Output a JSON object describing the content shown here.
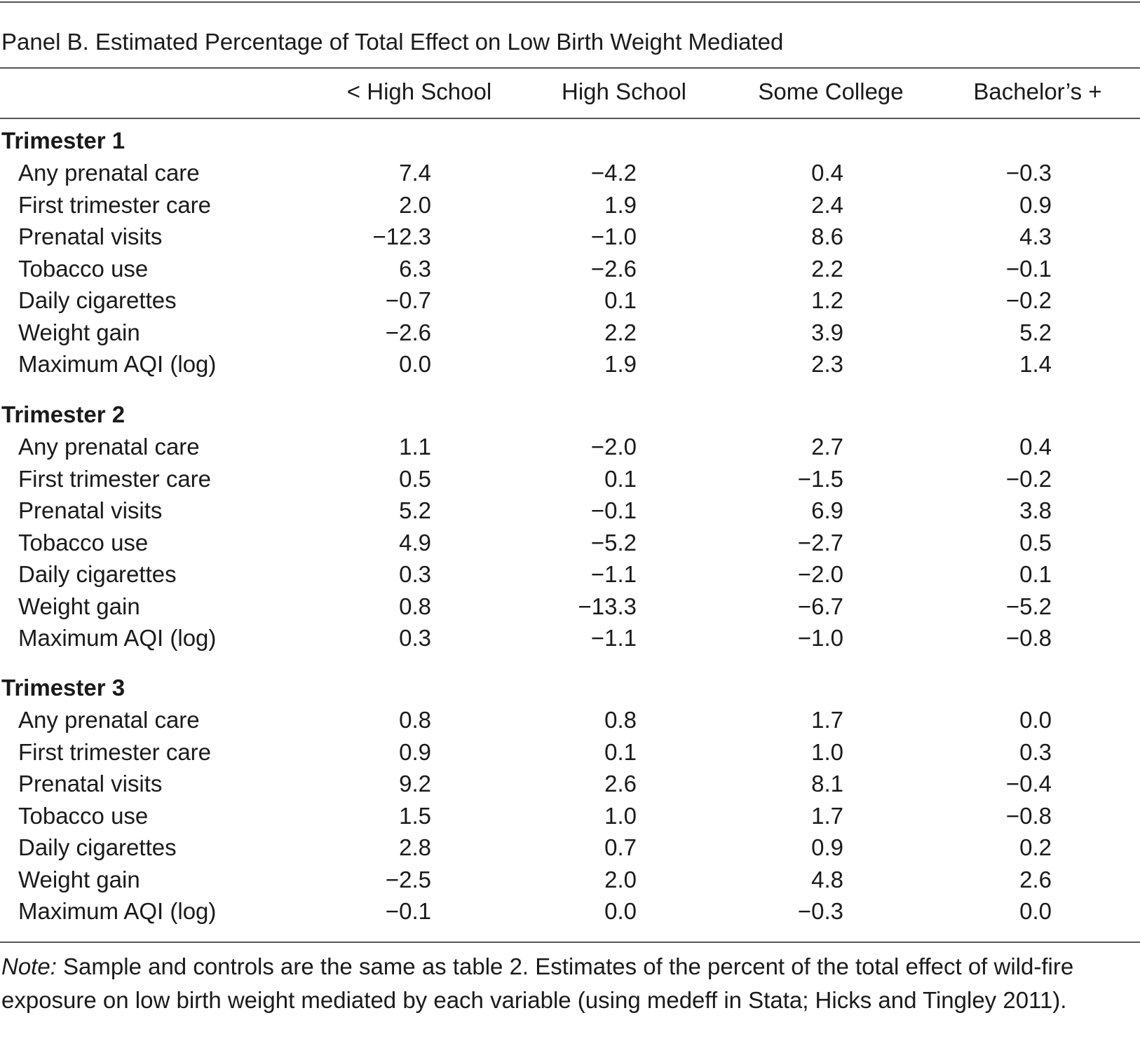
{
  "title": "Panel B. Estimated Percentage of Total Effect on Low Birth Weight Mediated",
  "columns": [
    "< High School",
    "High School",
    "Some College",
    "Bachelor’s +"
  ],
  "sections": [
    {
      "title": "Trimester 1",
      "rows": [
        {
          "label": "Any prenatal care",
          "values": [
            "7.4",
            "−4.2",
            "0.4",
            "−0.3"
          ]
        },
        {
          "label": "First trimester care",
          "values": [
            "2.0",
            "1.9",
            "2.4",
            "0.9"
          ]
        },
        {
          "label": "Prenatal visits",
          "values": [
            "−12.3",
            "−1.0",
            "8.6",
            "4.3"
          ]
        },
        {
          "label": "Tobacco use",
          "values": [
            "6.3",
            "−2.6",
            "2.2",
            "−0.1"
          ]
        },
        {
          "label": "Daily cigarettes",
          "values": [
            "−0.7",
            "0.1",
            "1.2",
            "−0.2"
          ]
        },
        {
          "label": "Weight gain",
          "values": [
            "−2.6",
            "2.2",
            "3.9",
            "5.2"
          ]
        },
        {
          "label": "Maximum AQI (log)",
          "values": [
            "0.0",
            "1.9",
            "2.3",
            "1.4"
          ]
        }
      ]
    },
    {
      "title": "Trimester 2",
      "rows": [
        {
          "label": "Any prenatal care",
          "values": [
            "1.1",
            "−2.0",
            "2.7",
            "0.4"
          ]
        },
        {
          "label": "First trimester care",
          "values": [
            "0.5",
            "0.1",
            "−1.5",
            "−0.2"
          ]
        },
        {
          "label": "Prenatal visits",
          "values": [
            "5.2",
            "−0.1",
            "6.9",
            "3.8"
          ]
        },
        {
          "label": "Tobacco use",
          "values": [
            "4.9",
            "−5.2",
            "−2.7",
            "0.5"
          ]
        },
        {
          "label": "Daily cigarettes",
          "values": [
            "0.3",
            "−1.1",
            "−2.0",
            "0.1"
          ]
        },
        {
          "label": "Weight gain",
          "values": [
            "0.8",
            "−13.3",
            "−6.7",
            "−5.2"
          ]
        },
        {
          "label": "Maximum AQI (log)",
          "values": [
            "0.3",
            "−1.1",
            "−1.0",
            "−0.8"
          ]
        }
      ]
    },
    {
      "title": "Trimester 3",
      "rows": [
        {
          "label": "Any prenatal care",
          "values": [
            "0.8",
            "0.8",
            "1.7",
            "0.0"
          ]
        },
        {
          "label": "First trimester care",
          "values": [
            "0.9",
            "0.1",
            "1.0",
            "0.3"
          ]
        },
        {
          "label": "Prenatal visits",
          "values": [
            "9.2",
            "2.6",
            "8.1",
            "−0.4"
          ]
        },
        {
          "label": "Tobacco use",
          "values": [
            "1.5",
            "1.0",
            "1.7",
            "−0.8"
          ]
        },
        {
          "label": "Daily cigarettes",
          "values": [
            "2.8",
            "0.7",
            "0.9",
            "0.2"
          ]
        },
        {
          "label": "Weight gain",
          "values": [
            "−2.5",
            "2.0",
            "4.8",
            "2.6"
          ]
        },
        {
          "label": "Maximum AQI (log)",
          "values": [
            "−0.1",
            "0.0",
            "−0.3",
            "0.0"
          ]
        }
      ]
    }
  ],
  "note": {
    "label": "Note:",
    "text": " Sample and controls are the same as table 2. Estimates of the percent of the total effect of wild-fire exposure on low birth weight mediated by each variable (using medeff in Stata; Hicks and Tingley 2011)."
  }
}
